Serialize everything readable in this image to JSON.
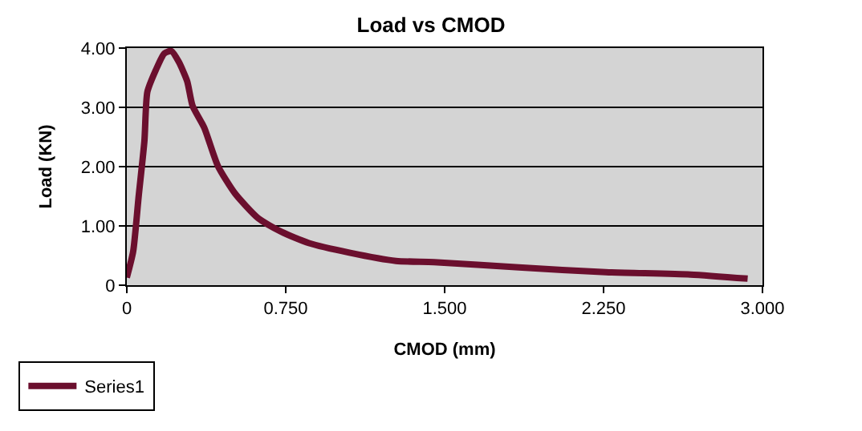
{
  "chart_data": {
    "type": "line",
    "title": "Load vs CMOD",
    "xlabel": "CMOD (mm)",
    "ylabel": "Load (KN)",
    "x": [
      0,
      0.03,
      0.056,
      0.083,
      0.097,
      0.137,
      0.177,
      0.21,
      0.245,
      0.285,
      0.31,
      0.365,
      0.43,
      0.51,
      0.62,
      0.73,
      0.86,
      1.05,
      1.27,
      1.45,
      1.85,
      2.26,
      2.66,
      2.93
    ],
    "series": [
      {
        "name": "Series1",
        "color": "#6b0f2e",
        "values": [
          0.13,
          0.57,
          1.5,
          2.43,
          3.26,
          3.63,
          3.91,
          3.95,
          3.77,
          3.44,
          3.03,
          2.66,
          2.01,
          1.55,
          1.13,
          0.9,
          0.71,
          0.55,
          0.41,
          0.39,
          0.3,
          0.22,
          0.18,
          0.11
        ]
      }
    ],
    "xlim": [
      0,
      3
    ],
    "ylim": [
      0,
      4
    ],
    "xticks": [
      0,
      {
        "value": 0.75,
        "label": "0.750"
      },
      {
        "value": 1.5,
        "label": "1.500"
      },
      {
        "value": 2.25,
        "label": "2.250"
      },
      {
        "value": 3,
        "label": "3.000"
      }
    ],
    "yticks": [
      0,
      {
        "value": 1,
        "label": "1.00"
      },
      {
        "value": 2,
        "label": "2.00"
      },
      {
        "value": 3,
        "label": "3.00"
      },
      {
        "value": 4,
        "label": "4.00"
      }
    ],
    "grid": "y",
    "legend": "bottom left",
    "marker": "none",
    "line_style": "solid"
  }
}
